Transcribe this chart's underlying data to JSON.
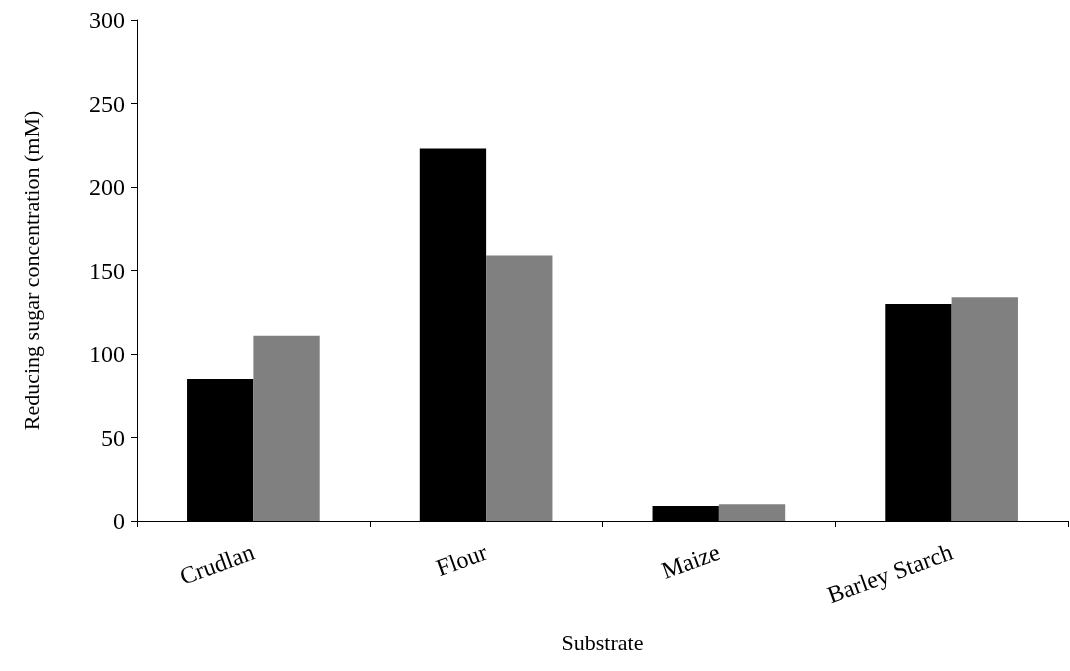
{
  "chart_data": {
    "type": "bar",
    "xlabel": "Substrate",
    "ylabel": "Reducing sugar concentration (mM)",
    "categories": [
      "Crudlan",
      "Flour",
      "Maize",
      "Barley Starch"
    ],
    "series": [
      {
        "color": "#000000",
        "values": [
          85,
          223,
          9,
          130
        ]
      },
      {
        "color": "#808080",
        "values": [
          111,
          159,
          10,
          134
        ]
      }
    ],
    "ylim": [
      0,
      300
    ],
    "yticks": [
      0,
      50,
      100,
      150,
      200,
      250,
      300
    ],
    "grid": false
  }
}
